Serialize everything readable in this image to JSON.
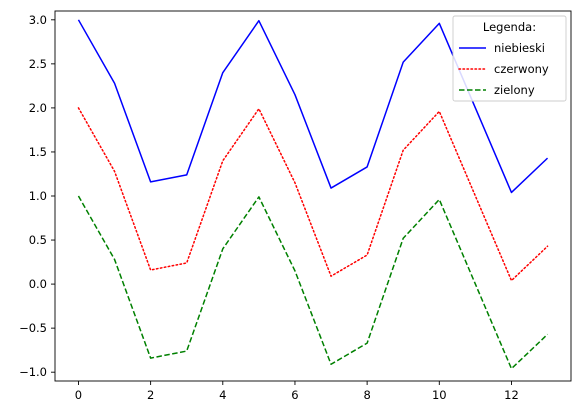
{
  "chart_data": {
    "type": "line",
    "title": "",
    "xlabel": "",
    "ylabel": "",
    "x": [
      0,
      1,
      2,
      3,
      4,
      5,
      6,
      7,
      8,
      9,
      10,
      11,
      12,
      13
    ],
    "xlim": [
      -0.65,
      13.65
    ],
    "ylim": [
      -1.1,
      3.1
    ],
    "xticks": [
      0,
      2,
      4,
      6,
      8,
      10,
      12
    ],
    "xtick_labels": [
      "0",
      "2",
      "4",
      "6",
      "8",
      "10",
      "12"
    ],
    "yticks": [
      -1.0,
      -0.5,
      0.0,
      0.5,
      1.0,
      1.5,
      2.0,
      2.5,
      3.0
    ],
    "ytick_labels": [
      "−1.0",
      "−0.5",
      "0.0",
      "0.5",
      "1.0",
      "1.5",
      "2.0",
      "2.5",
      "3.0"
    ],
    "grid": false,
    "legend": {
      "title": "Legenda:",
      "placement": "top-right"
    },
    "series": [
      {
        "name": "niebieski",
        "color": "#0000ff",
        "style": "solid",
        "values": [
          3.0,
          2.28,
          1.16,
          1.24,
          2.4,
          2.99,
          2.15,
          1.09,
          1.33,
          2.52,
          2.96,
          2.0,
          1.04,
          1.43
        ]
      },
      {
        "name": "czerwony",
        "color": "#ff0000",
        "style": "dotted",
        "values": [
          2.0,
          1.28,
          0.16,
          0.24,
          1.4,
          1.99,
          1.15,
          0.09,
          0.33,
          1.52,
          1.96,
          1.0,
          0.04,
          0.43
        ]
      },
      {
        "name": "zielony",
        "color": "#008000",
        "style": "dashed",
        "values": [
          1.0,
          0.28,
          -0.84,
          -0.76,
          0.4,
          0.99,
          0.15,
          -0.91,
          -0.67,
          0.52,
          0.96,
          0.0,
          -0.96,
          -0.57
        ]
      }
    ]
  }
}
